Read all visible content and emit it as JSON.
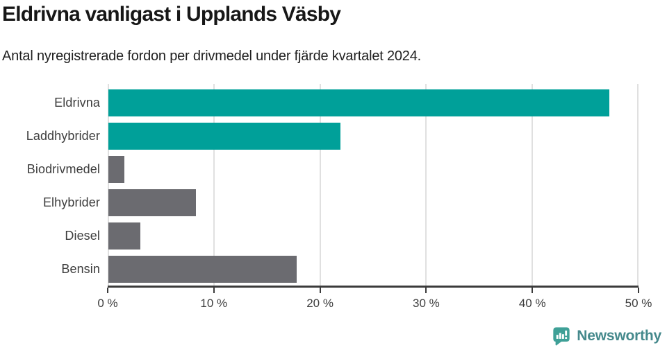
{
  "header": {
    "title": "Eldrivna vanligast i Upplands Väsby",
    "subtitle": "Antal nyregistrerade fordon per drivmedel under fjärde kvartalet 2024."
  },
  "chart_data": {
    "type": "bar",
    "orientation": "horizontal",
    "title": "Eldrivna vanligast i Upplands Väsby",
    "subtitle": "Antal nyregistrerade fordon per drivmedel under fjärde kvartalet 2024.",
    "categories": [
      "Eldrivna",
      "Laddhybrider",
      "Biodrivmedel",
      "Elhybrider",
      "Diesel",
      "Bensin"
    ],
    "values": [
      47.3,
      21.9,
      1.5,
      8.3,
      3.0,
      17.8
    ],
    "unit": "%",
    "xlim": [
      0,
      50
    ],
    "x_ticks": [
      0,
      10,
      20,
      30,
      40,
      50
    ],
    "x_tick_labels": [
      "0 %",
      "10 %",
      "20 %",
      "30 %",
      "40 %",
      "50 %"
    ],
    "bar_colors": [
      "#00a099",
      "#00a099",
      "#6b6b70",
      "#6b6b70",
      "#6b6b70",
      "#6b6b70"
    ],
    "highlight_color": "#00a099",
    "default_color": "#6b6b70",
    "gridline_color": "#e0e0e0",
    "axis_color": "#3b3b3b",
    "grid": true,
    "legend": false
  },
  "footer": {
    "brand": "Newsworthy",
    "brand_text_color": "#45898c",
    "brand_icon_color": "#3fa097"
  }
}
